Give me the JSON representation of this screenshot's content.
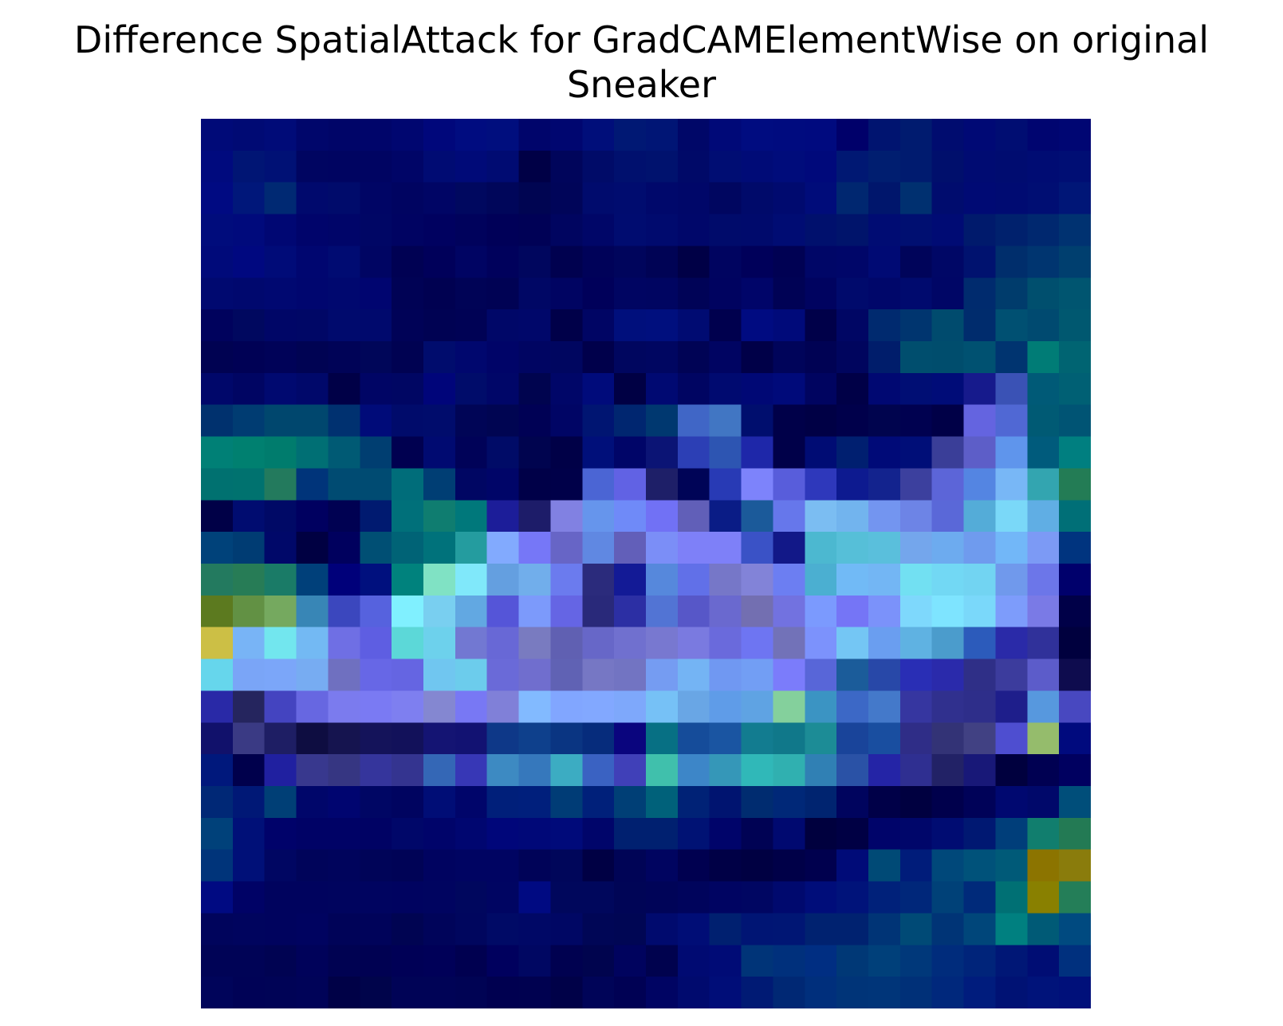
{
  "chart_data": {
    "type": "heatmap",
    "title": "Difference SpatialAttack for GradCAMElementWise on original\nSneaker",
    "xlabel": "",
    "ylabel": "",
    "axes_visible": false,
    "grid": false,
    "colorbar": false,
    "shape": [
      28,
      28
    ],
    "cells": [
      [
        "#000a78",
        "#000a74",
        "#000b78",
        "#00066b",
        "#000568",
        "#00056a",
        "#000670",
        "#00077b",
        "#000c80",
        "#000e7e",
        "#00056b",
        "#000670",
        "#000e7a",
        "#001874",
        "#001575",
        "#000768",
        "#000978",
        "#000c80",
        "#000b7f",
        "#000a7f",
        "#00006a",
        "#001470",
        "#001b6f",
        "#000c6f",
        "#000975",
        "#000d72",
        "#000570",
        "#000673"
      ],
      [
        "#000a7e",
        "#001574",
        "#001175",
        "#000561",
        "#000461",
        "#000462",
        "#000567",
        "#000b73",
        "#000a78",
        "#000b72",
        "#000046",
        "#00055b",
        "#000b68",
        "#00106e",
        "#00126e",
        "#000968",
        "#000d73",
        "#000b77",
        "#000c7b",
        "#00097b",
        "#001873",
        "#001e70",
        "#001b6f",
        "#000f6c",
        "#000b72",
        "#000c70",
        "#000c73",
        "#000e74"
      ],
      [
        "#000a82",
        "#00177a",
        "#002973",
        "#00096d",
        "#000b6b",
        "#000565",
        "#000461",
        "#000565",
        "#00085f",
        "#00065a",
        "#000552",
        "#000559",
        "#000b6d",
        "#000c6f",
        "#00086b",
        "#000769",
        "#000660",
        "#000a6a",
        "#000a6f",
        "#000c7a",
        "#002770",
        "#00166c",
        "#003070",
        "#000c6e",
        "#000a74",
        "#000b72",
        "#000e73",
        "#001677"
      ],
      [
        "#000c7c",
        "#000a7c",
        "#000773",
        "#00046b",
        "#000569",
        "#000665",
        "#000362",
        "#000160",
        "#00025c",
        "#000058",
        "#000156",
        "#000560",
        "#000668",
        "#000c70",
        "#000a6e",
        "#00076a",
        "#000b6b",
        "#000a6c",
        "#000c73",
        "#00106d",
        "#00146b",
        "#000c73",
        "#000f71",
        "#000b74",
        "#001a6c",
        "#00216d",
        "#00286f",
        "#003271"
      ],
      [
        "#000a7a",
        "#000880",
        "#000b78",
        "#000670",
        "#000b72",
        "#000563",
        "#000153",
        "#00005a",
        "#000463",
        "#00015c",
        "#00065e",
        "#00014f",
        "#000259",
        "#00055c",
        "#000355",
        "#000046",
        "#000460",
        "#00005a",
        "#000153",
        "#000667",
        "#000669",
        "#000a74",
        "#00045a",
        "#000766",
        "#00126f",
        "#002e6c",
        "#003570",
        "#003f6f"
      ],
      [
        "#000970",
        "#00086e",
        "#000871",
        "#00066f",
        "#00086f",
        "#000570",
        "#000255",
        "#000151",
        "#000356",
        "#000254",
        "#000765",
        "#000462",
        "#00005a",
        "#000562",
        "#000561",
        "#000357",
        "#000360",
        "#000569",
        "#000255",
        "#000360",
        "#000a6c",
        "#00076a",
        "#000a6e",
        "#000666",
        "#002b6e",
        "#003c6c",
        "#004f6e",
        "#005570"
      ],
      [
        "#00025d",
        "#00085f",
        "#000667",
        "#000766",
        "#000a6d",
        "#00096d",
        "#000257",
        "#000253",
        "#000255",
        "#000768",
        "#00076a",
        "#000049",
        "#000564",
        "#000f7c",
        "#000f7e",
        "#000b72",
        "#00004e",
        "#000b81",
        "#000a7a",
        "#000049",
        "#000664",
        "#002a6f",
        "#00356f",
        "#004b6e",
        "#002c6d",
        "#005072",
        "#004a70",
        "#005870"
      ],
      [
        "#000252",
        "#000155",
        "#000258",
        "#000353",
        "#000357",
        "#000659",
        "#000252",
        "#000c6d",
        "#00076e",
        "#000468",
        "#000562",
        "#000660",
        "#00004b",
        "#00065f",
        "#000661",
        "#000355",
        "#000462",
        "#000048",
        "#00045a",
        "#000254",
        "#00055e",
        "#001d6b",
        "#004e6e",
        "#004d6d",
        "#005171",
        "#003470",
        "#007c76",
        "#006472"
      ],
      [
        "#00076a",
        "#000563",
        "#000970",
        "#00086a",
        "#000047",
        "#000565",
        "#000663",
        "#00057a",
        "#000c6a",
        "#000668",
        "#00044f",
        "#000668",
        "#000b7b",
        "#000044",
        "#000972",
        "#000562",
        "#000a70",
        "#000875",
        "#000a7a",
        "#000460",
        "#000047",
        "#000872",
        "#000e74",
        "#000c78",
        "#161a8c",
        "#3a52b5",
        "#005a77",
        "#006074"
      ],
      [
        "#00316e",
        "#003c72",
        "#00476e",
        "#00476e",
        "#003170",
        "#000b79",
        "#000b6b",
        "#000c6c",
        "#000556",
        "#000552",
        "#000155",
        "#000565",
        "#001572",
        "#002670",
        "#003870",
        "#4066c6",
        "#4176c3",
        "#000e6e",
        "#000049",
        "#000045",
        "#00004b",
        "#00044e",
        "#000150",
        "#000047",
        "#6464e0",
        "#5068d4",
        "#005a74",
        "#005474"
      ],
      [
        "#008076",
        "#008070",
        "#007c6d",
        "#006f74",
        "#005a74",
        "#003e71",
        "#000050",
        "#000a71",
        "#000258",
        "#000b67",
        "#00044f",
        "#000047",
        "#000f7a",
        "#000568",
        "#0b1475",
        "#2c3fb5",
        "#2d55b2",
        "#1e27a9",
        "#000049",
        "#000c74",
        "#001f70",
        "#000a78",
        "#000e78",
        "#3a3e98",
        "#5d5ec8",
        "#5f95ec",
        "#005b7c",
        "#007f80"
      ],
      [
        "#007170",
        "#00726f",
        "#237a5d",
        "#00347a",
        "#004b72",
        "#004b72",
        "#006d7a",
        "#003e74",
        "#000663",
        "#000568",
        "#000048",
        "#000049",
        "#4b65d4",
        "#6162e4",
        "#1e1f68",
        "#000457",
        "#283ab5",
        "#7d83fb",
        "#585ddb",
        "#2e38bb",
        "#0d1a90",
        "#13238e",
        "#3c409e",
        "#5c65d8",
        "#5485e2",
        "#78b7f6",
        "#33a5b0",
        "#237c55"
      ],
      [
        "#000047",
        "#000c70",
        "#000966",
        "#000060",
        "#000152",
        "#001a70",
        "#00707a",
        "#0f7d70",
        "#00787b",
        "#1c1d99",
        "#1d1c69",
        "#8181e2",
        "#6695ec",
        "#6f8af8",
        "#7171f5",
        "#615fb8",
        "#0a1c86",
        "#1b5a9a",
        "#6677eb",
        "#7bbdf2",
        "#72b4ee",
        "#7395f0",
        "#6d84e6",
        "#5a68d8",
        "#54acd8",
        "#7ad8f8",
        "#60aee4",
        "#006f77"
      ],
      [
        "#00427a",
        "#003c73",
        "#000869",
        "#000042",
        "#00005e",
        "#004f74",
        "#006376",
        "#00727b",
        "#249c9f",
        "#82aafe",
        "#7677f7",
        "#6765c6",
        "#6088e2",
        "#625fb9",
        "#7b8ef7",
        "#7e80f8",
        "#7e80f8",
        "#3a52c6",
        "#121888",
        "#4cb8d0",
        "#56bfd8",
        "#5abfdc",
        "#74a6ec",
        "#6dabef",
        "#6f9bee",
        "#72b7f8",
        "#7c9af5",
        "#00347f"
      ],
      [
        "#237a5f",
        "#277c56",
        "#1a7b67",
        "#00407a",
        "#00007a",
        "#00107e",
        "#00827d",
        "#80e2c4",
        "#80e8fa",
        "#649fe0",
        "#71aeeb",
        "#6b7bee",
        "#2b2b7c",
        "#131a96",
        "#5688dc",
        "#6170e8",
        "#7677c8",
        "#8283d8",
        "#6c7ef2",
        "#4bafd1",
        "#71baf6",
        "#73b6f4",
        "#72e0f2",
        "#72d8f4",
        "#72d4f2",
        "#7099ec",
        "#6c76e9",
        "#00006c"
      ],
      [
        "#5c7a1f",
        "#629144",
        "#75a95f",
        "#3886b6",
        "#3b47be",
        "#5662de",
        "#80f0ff",
        "#79cff0",
        "#62a8e2",
        "#5555d8",
        "#7c9afb",
        "#6565e4",
        "#29297a",
        "#2c2fa4",
        "#5274d4",
        "#5757c8",
        "#6a69cf",
        "#736fb1",
        "#7272e0",
        "#7b9afe",
        "#7575f6",
        "#7b92fa",
        "#7ed8fc",
        "#7ee4ff",
        "#7ad8fa",
        "#7d9cfb",
        "#7a7ae6",
        "#000048"
      ],
      [
        "#ccbf45",
        "#78b4f6",
        "#72e6ee",
        "#73b9f3",
        "#6f6fe4",
        "#5e5ee2",
        "#5cd8d8",
        "#6dd1ec",
        "#7278d2",
        "#6868d6",
        "#797bc0",
        "#6060b2",
        "#6767c8",
        "#7070cf",
        "#7878d0",
        "#7a7ae0",
        "#6a6adc",
        "#6e75f2",
        "#7272b8",
        "#7c92fc",
        "#74c6f4",
        "#6a9ef0",
        "#5fb2e2",
        "#4b9ccc",
        "#2c5bbb",
        "#2a2aa8",
        "#30319a",
        "#00003e"
      ],
      [
        "#66d6ec",
        "#7aa5f7",
        "#7ba6f9",
        "#77acf2",
        "#6f70c0",
        "#6767e6",
        "#6565e2",
        "#70c6f0",
        "#6cccec",
        "#6a6ad8",
        "#706ece",
        "#6062b4",
        "#7677c4",
        "#7274c2",
        "#759cf2",
        "#74b4f4",
        "#7098f2",
        "#729ef4",
        "#7b7cfb",
        "#5866d8",
        "#1b5c9a",
        "#2848a8",
        "#292eb5",
        "#2a2aab",
        "#2f2f87",
        "#3c3c9d",
        "#5c5cca",
        "#0e0c4e"
      ],
      [
        "#2929a7",
        "#25255e",
        "#4444c0",
        "#6767e1",
        "#7b7bee",
        "#7a7af3",
        "#7e7ff0",
        "#8487d1",
        "#7878f4",
        "#8080d8",
        "#82baff",
        "#81a6ff",
        "#82a8ff",
        "#7ea8fb",
        "#76c1f6",
        "#69a6e5",
        "#5f9ce8",
        "#5fa3e3",
        "#84d09c",
        "#3b94c3",
        "#3c68c6",
        "#4479ca",
        "#3636a0",
        "#30308e",
        "#2e2e8a",
        "#1e1e8b",
        "#5798de",
        "#4848c0"
      ],
      [
        "#11116b",
        "#3a3a84",
        "#1e1e64",
        "#0e0d41",
        "#15144f",
        "#14135a",
        "#12115a",
        "#141473",
        "#121272",
        "#0e3888",
        "#0e408c",
        "#0a3582",
        "#062c7c",
        "#0a057e",
        "#077084",
        "#154c9a",
        "#1a55a2",
        "#127c90",
        "#10788a",
        "#1c8c96",
        "#19449a",
        "#194ea0",
        "#2f2d87",
        "#333376",
        "#414183",
        "#4e4ed0",
        "#95bc6c",
        "#000a7e"
      ],
      [
        "#00187c",
        "#00004c",
        "#2020a0",
        "#38388e",
        "#363682",
        "#35359c",
        "#343490",
        "#3467b6",
        "#3737b6",
        "#3d8ac2",
        "#3678bc",
        "#3cacc2",
        "#3a62c2",
        "#4040b8",
        "#40c0ac",
        "#3d86c8",
        "#3597b8",
        "#30b8b8",
        "#30b0b0",
        "#3080b4",
        "#2a52a6",
        "#2424a6",
        "#2f2f91",
        "#222266",
        "#181878",
        "#00003e",
        "#000052",
        "#000060"
      ],
      [
        "#002876",
        "#001876",
        "#003f76",
        "#00066a",
        "#000570",
        "#000664",
        "#000460",
        "#000d76",
        "#00056a",
        "#001f7a",
        "#001f7c",
        "#003c76",
        "#00207a",
        "#003f76",
        "#00617a",
        "#002276",
        "#001470",
        "#002c70",
        "#002878",
        "#002470",
        "#00045e",
        "#000048",
        "#000040",
        "#00004c",
        "#000258",
        "#000870",
        "#00086a",
        "#004e7a"
      ],
      [
        "#00417a",
        "#001078",
        "#00026a",
        "#000266",
        "#000266",
        "#000264",
        "#000769",
        "#00046a",
        "#000670",
        "#00067a",
        "#000878",
        "#000a7a",
        "#00056a",
        "#002070",
        "#002070",
        "#001274",
        "#00046a",
        "#000254",
        "#000970",
        "#00003e",
        "#000044",
        "#00046a",
        "#00066a",
        "#000c72",
        "#001872",
        "#003e7a",
        "#117e6e",
        "#237a54"
      ],
      [
        "#00347a",
        "#001078",
        "#000662",
        "#00045a",
        "#00045c",
        "#000458",
        "#000356",
        "#000360",
        "#000462",
        "#000462",
        "#000358",
        "#00065a",
        "#000044",
        "#000456",
        "#000460",
        "#000050",
        "#000046",
        "#000042",
        "#000048",
        "#00004e",
        "#000b78",
        "#004a76",
        "#001c7a",
        "#00487a",
        "#00527a",
        "#005a78",
        "#8c7400",
        "#8a7c0c"
      ],
      [
        "#000a82",
        "#000266",
        "#00035e",
        "#00035e",
        "#00045e",
        "#000460",
        "#000360",
        "#000460",
        "#00075e",
        "#000562",
        "#000a82",
        "#00075c",
        "#00075c",
        "#000556",
        "#000458",
        "#00045c",
        "#000462",
        "#000662",
        "#00096e",
        "#000d7a",
        "#00137a",
        "#00217a",
        "#00277a",
        "#004178",
        "#002a7a",
        "#007074",
        "#898000",
        "#247e58"
      ],
      [
        "#00045c",
        "#00045e",
        "#00035e",
        "#000360",
        "#000358",
        "#00035a",
        "#000452",
        "#00045a",
        "#00065e",
        "#000a66",
        "#000866",
        "#000764",
        "#000656",
        "#000654",
        "#000a6e",
        "#000d76",
        "#002070",
        "#001574",
        "#001674",
        "#002270",
        "#002270",
        "#003476",
        "#004a76",
        "#003476",
        "#00467a",
        "#008080",
        "#005a76",
        "#004a80"
      ],
      [
        "#000356",
        "#000356",
        "#000352",
        "#00025a",
        "#000252",
        "#000152",
        "#000056",
        "#000058",
        "#000050",
        "#00005e",
        "#000762",
        "#000150",
        "#00044e",
        "#00035e",
        "#00024e",
        "#000a72",
        "#000b76",
        "#003478",
        "#00307c",
        "#002e82",
        "#003876",
        "#00407a",
        "#00387a",
        "#002c7c",
        "#00247a",
        "#001776",
        "#000d74",
        "#00307e"
      ],
      [
        "#00045a",
        "#000256",
        "#000356",
        "#000358",
        "#000147",
        "#00044b",
        "#000356",
        "#000356",
        "#000354",
        "#000050",
        "#000150",
        "#000148",
        "#000458",
        "#000154",
        "#000463",
        "#000a6e",
        "#000d78",
        "#001a74",
        "#002874",
        "#002f7c",
        "#003478",
        "#003579",
        "#003078",
        "#00287c",
        "#001c7d",
        "#001274",
        "#00137a",
        "#00107a"
      ]
    ]
  }
}
